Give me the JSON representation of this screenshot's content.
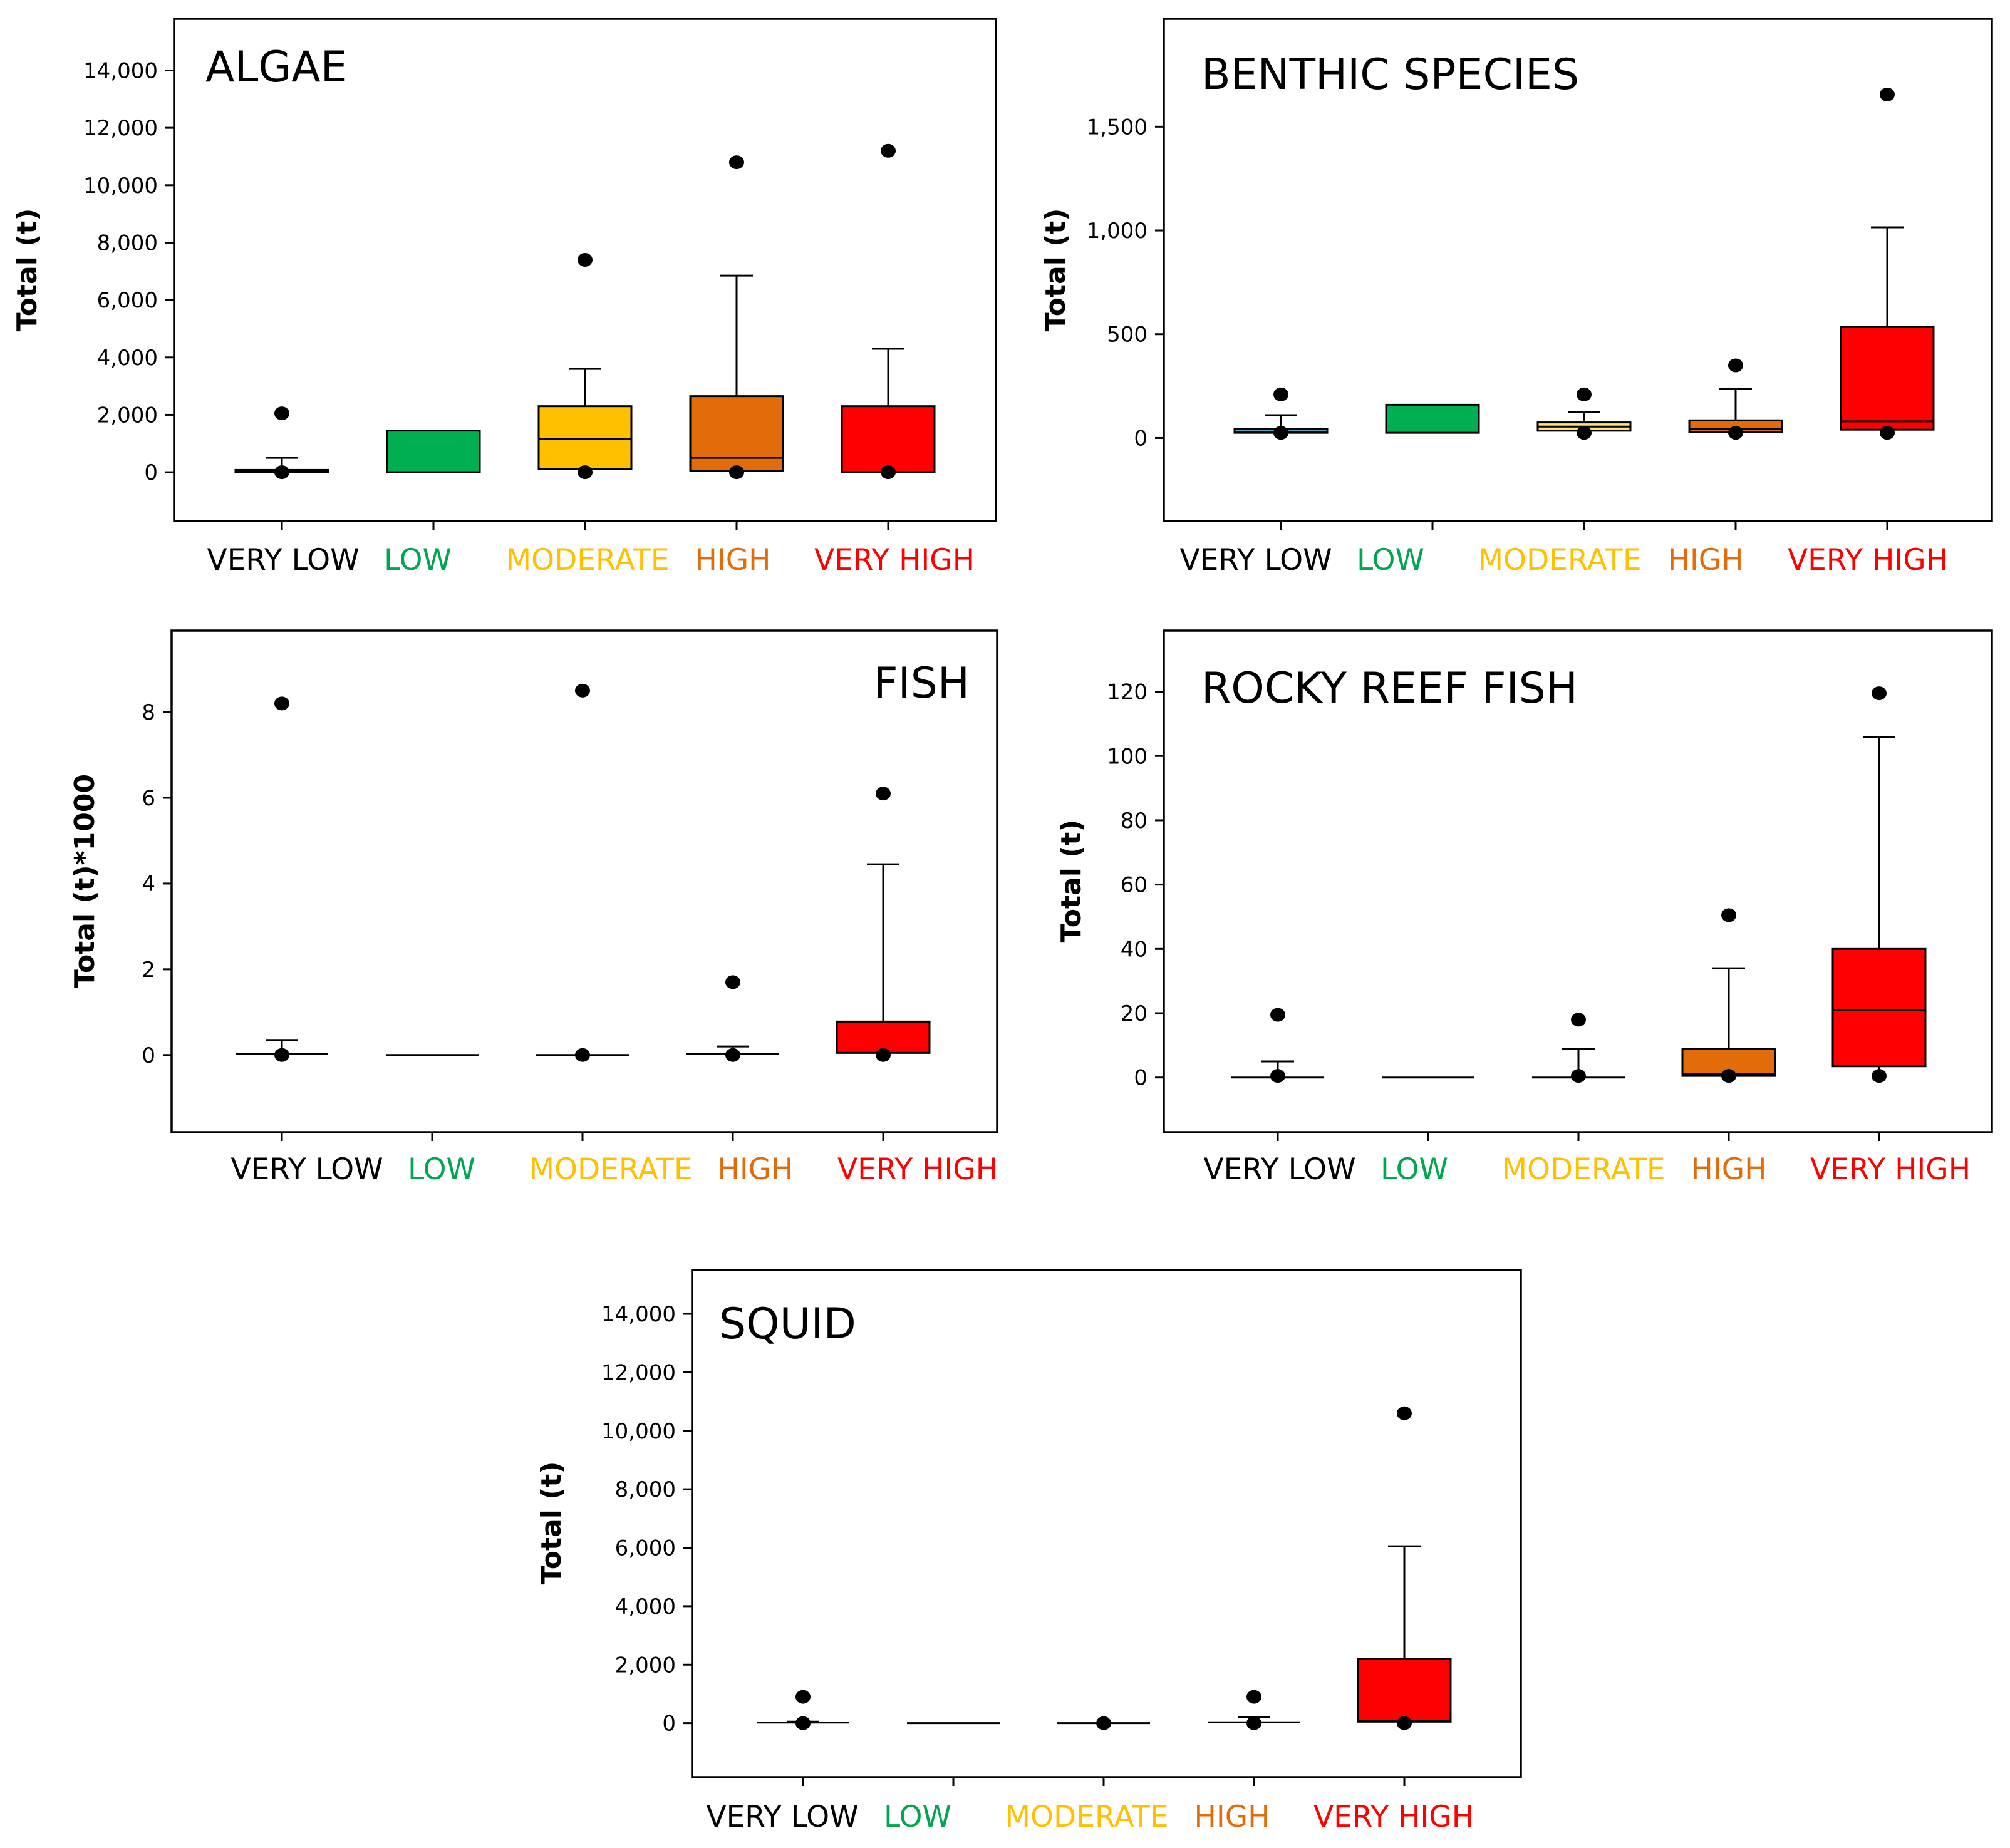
{
  "chart_data": [
    {
      "type": "box",
      "title": "ALGAE",
      "ylabel": "Total (t)",
      "ylim": [
        -1700,
        15800
      ],
      "yticks": [
        0,
        2000,
        4000,
        6000,
        8000,
        10000,
        12000,
        14000
      ],
      "ytick_labels": [
        "0",
        "2,000",
        "4,000",
        "6,000",
        "8,000",
        "10,000",
        "12,000",
        "14,000"
      ],
      "categories": [
        "VERY LOW",
        "LOW",
        "MODERATE",
        "HIGH",
        "VERY HIGH"
      ],
      "category_colors": [
        "#000000",
        "#00a651",
        "#ffc000",
        "#e26b0a",
        "#ff0000"
      ],
      "boxes": [
        {
          "category": "VERY LOW",
          "fill": "#0e2841",
          "q1": 0,
          "median": 50,
          "q3": 80,
          "whisker_low": 0,
          "whisker_high": 500,
          "outliers": [
            2050,
            0
          ]
        },
        {
          "category": "LOW",
          "fill": "#00b050",
          "q1": 0,
          "median": 0,
          "q3": 1450,
          "whisker_low": 0,
          "whisker_high": 1450,
          "outliers": []
        },
        {
          "category": "MODERATE",
          "fill": "#ffc000",
          "q1": 100,
          "median": 1150,
          "q3": 2300,
          "whisker_low": 0,
          "whisker_high": 3600,
          "outliers": [
            7400,
            0
          ]
        },
        {
          "category": "HIGH",
          "fill": "#e26b0a",
          "q1": 50,
          "median": 500,
          "q3": 2650,
          "whisker_low": 0,
          "whisker_high": 6850,
          "outliers": [
            10800,
            0
          ]
        },
        {
          "category": "VERY HIGH",
          "fill": "#ff0000",
          "q1": 0,
          "median": 0,
          "q3": 2300,
          "whisker_low": 0,
          "whisker_high": 4300,
          "outliers": [
            11200,
            0
          ]
        }
      ]
    },
    {
      "type": "box",
      "title": "BENTHIC SPECIES",
      "ylabel": "Total (t)",
      "ylim": [
        -400,
        2020
      ],
      "yticks": [
        0,
        500,
        1000,
        1500
      ],
      "ytick_labels": [
        "0",
        "500",
        "1,000",
        "1,500"
      ],
      "categories": [
        "VERY LOW",
        "LOW",
        "MODERATE",
        "HIGH",
        "VERY HIGH"
      ],
      "category_colors": [
        "#000000",
        "#00a651",
        "#ffc000",
        "#e26b0a",
        "#ff0000"
      ],
      "boxes": [
        {
          "category": "VERY LOW",
          "fill": "#4aaac4",
          "q1": 25,
          "median": 30,
          "q3": 45,
          "whisker_low": 25,
          "whisker_high": 110,
          "outliers": [
            210,
            25
          ]
        },
        {
          "category": "LOW",
          "fill": "#00b050",
          "q1": 25,
          "median": 25,
          "q3": 160,
          "whisker_low": 25,
          "whisker_high": 160,
          "outliers": []
        },
        {
          "category": "MODERATE",
          "fill": "#ffe26b",
          "q1": 35,
          "median": 55,
          "q3": 75,
          "whisker_low": 25,
          "whisker_high": 125,
          "outliers": [
            210,
            25
          ]
        },
        {
          "category": "HIGH",
          "fill": "#e26b0a",
          "q1": 30,
          "median": 45,
          "q3": 85,
          "whisker_low": 25,
          "whisker_high": 235,
          "outliers": [
            350,
            25
          ]
        },
        {
          "category": "VERY HIGH",
          "fill": "#ff0000",
          "q1": 40,
          "median": 80,
          "q3": 535,
          "whisker_low": 25,
          "whisker_high": 1015,
          "outliers": [
            1655,
            25
          ]
        }
      ]
    },
    {
      "type": "box",
      "title": "FISH",
      "ylabel": "Total (t)*1000",
      "ylim": [
        -1.8,
        9.9
      ],
      "yticks": [
        0,
        2,
        4,
        6,
        8
      ],
      "ytick_labels": [
        "0",
        "2",
        "4",
        "6",
        "8"
      ],
      "categories": [
        "VERY LOW",
        "LOW",
        "MODERATE",
        "HIGH",
        "VERY HIGH"
      ],
      "category_colors": [
        "#000000",
        "#00a651",
        "#ffc000",
        "#e26b0a",
        "#ff0000"
      ],
      "boxes": [
        {
          "category": "VERY LOW",
          "fill": "#ffffff",
          "q1": 0,
          "median": 0,
          "q3": 0.02,
          "whisker_low": 0,
          "whisker_high": 0.35,
          "outliers": [
            8.2,
            0
          ]
        },
        {
          "category": "LOW",
          "fill": "#ffffff",
          "q1": 0,
          "median": 0,
          "q3": 0,
          "whisker_low": 0,
          "whisker_high": 0,
          "outliers": []
        },
        {
          "category": "MODERATE",
          "fill": "#ffffff",
          "q1": 0,
          "median": 0,
          "q3": 0,
          "whisker_low": 0,
          "whisker_high": 0,
          "outliers": [
            8.5,
            0
          ]
        },
        {
          "category": "HIGH",
          "fill": "#ffffff",
          "q1": 0,
          "median": 0,
          "q3": 0.03,
          "whisker_low": 0,
          "whisker_high": 0.2,
          "outliers": [
            1.7,
            0
          ]
        },
        {
          "category": "VERY HIGH",
          "fill": "#ff0000",
          "q1": 0.05,
          "median": 0.05,
          "q3": 0.78,
          "whisker_low": 0,
          "whisker_high": 4.45,
          "outliers": [
            6.1,
            0
          ]
        }
      ]
    },
    {
      "type": "box",
      "title": "ROCKY REEF FISH",
      "ylabel": "Total (t)",
      "ylim": [
        -17,
        139
      ],
      "yticks": [
        0,
        20,
        40,
        60,
        80,
        100,
        120
      ],
      "ytick_labels": [
        "0",
        "20",
        "40",
        "60",
        "80",
        "100",
        "120"
      ],
      "categories": [
        "VERY LOW",
        "LOW",
        "MODERATE",
        "HIGH",
        "VERY HIGH"
      ],
      "category_colors": [
        "#000000",
        "#00a651",
        "#ffc000",
        "#e26b0a",
        "#ff0000"
      ],
      "boxes": [
        {
          "category": "VERY LOW",
          "fill": "#ffffff",
          "q1": 0,
          "median": 0,
          "q3": 0,
          "whisker_low": 0,
          "whisker_high": 5,
          "outliers": [
            19.5,
            0.5
          ]
        },
        {
          "category": "LOW",
          "fill": "#ffffff",
          "q1": 0,
          "median": 0,
          "q3": 0,
          "whisker_low": 0,
          "whisker_high": 0,
          "outliers": []
        },
        {
          "category": "MODERATE",
          "fill": "#ffffff",
          "q1": 0,
          "median": 0,
          "q3": 0,
          "whisker_low": 0,
          "whisker_high": 9,
          "outliers": [
            18,
            0.5
          ]
        },
        {
          "category": "HIGH",
          "fill": "#e26b0a",
          "q1": 0.5,
          "median": 1,
          "q3": 9,
          "whisker_low": 0,
          "whisker_high": 34,
          "outliers": [
            50.5,
            0.5
          ]
        },
        {
          "category": "VERY HIGH",
          "fill": "#ff0000",
          "q1": 3.5,
          "median": 21,
          "q3": 40,
          "whisker_low": 0,
          "whisker_high": 106,
          "outliers": [
            119.5,
            0.5
          ]
        }
      ]
    },
    {
      "type": "box",
      "title": "SQUID",
      "ylabel": "Total (t)",
      "ylim": [
        -1850,
        15500
      ],
      "yticks": [
        0,
        2000,
        4000,
        6000,
        8000,
        10000,
        12000,
        14000
      ],
      "ytick_labels": [
        "0",
        "2,000",
        "4,000",
        "6,000",
        "8,000",
        "10,000",
        "12,000",
        "14,000"
      ],
      "categories": [
        "VERY LOW",
        "LOW",
        "MODERATE",
        "HIGH",
        "VERY HIGH"
      ],
      "category_colors": [
        "#000000",
        "#00a651",
        "#ffc000",
        "#e26b0a",
        "#ff0000"
      ],
      "boxes": [
        {
          "category": "VERY LOW",
          "fill": "#ffffff",
          "q1": 0,
          "median": 0,
          "q3": 20,
          "whisker_low": 0,
          "whisker_high": 50,
          "outliers": [
            900,
            0
          ]
        },
        {
          "category": "LOW",
          "fill": "#ffffff",
          "q1": 0,
          "median": 0,
          "q3": 0,
          "whisker_low": 0,
          "whisker_high": 0,
          "outliers": []
        },
        {
          "category": "MODERATE",
          "fill": "#ffffff",
          "q1": 0,
          "median": 0,
          "q3": 0,
          "whisker_low": 0,
          "whisker_high": 0,
          "outliers": [
            0
          ]
        },
        {
          "category": "HIGH",
          "fill": "#ffffff",
          "q1": 0,
          "median": 0,
          "q3": 30,
          "whisker_low": 0,
          "whisker_high": 200,
          "outliers": [
            900,
            0
          ]
        },
        {
          "category": "VERY HIGH",
          "fill": "#ff0000",
          "q1": 50,
          "median": 80,
          "q3": 2200,
          "whisker_low": 0,
          "whisker_high": 6050,
          "outliers": [
            10600,
            0
          ]
        }
      ]
    }
  ]
}
